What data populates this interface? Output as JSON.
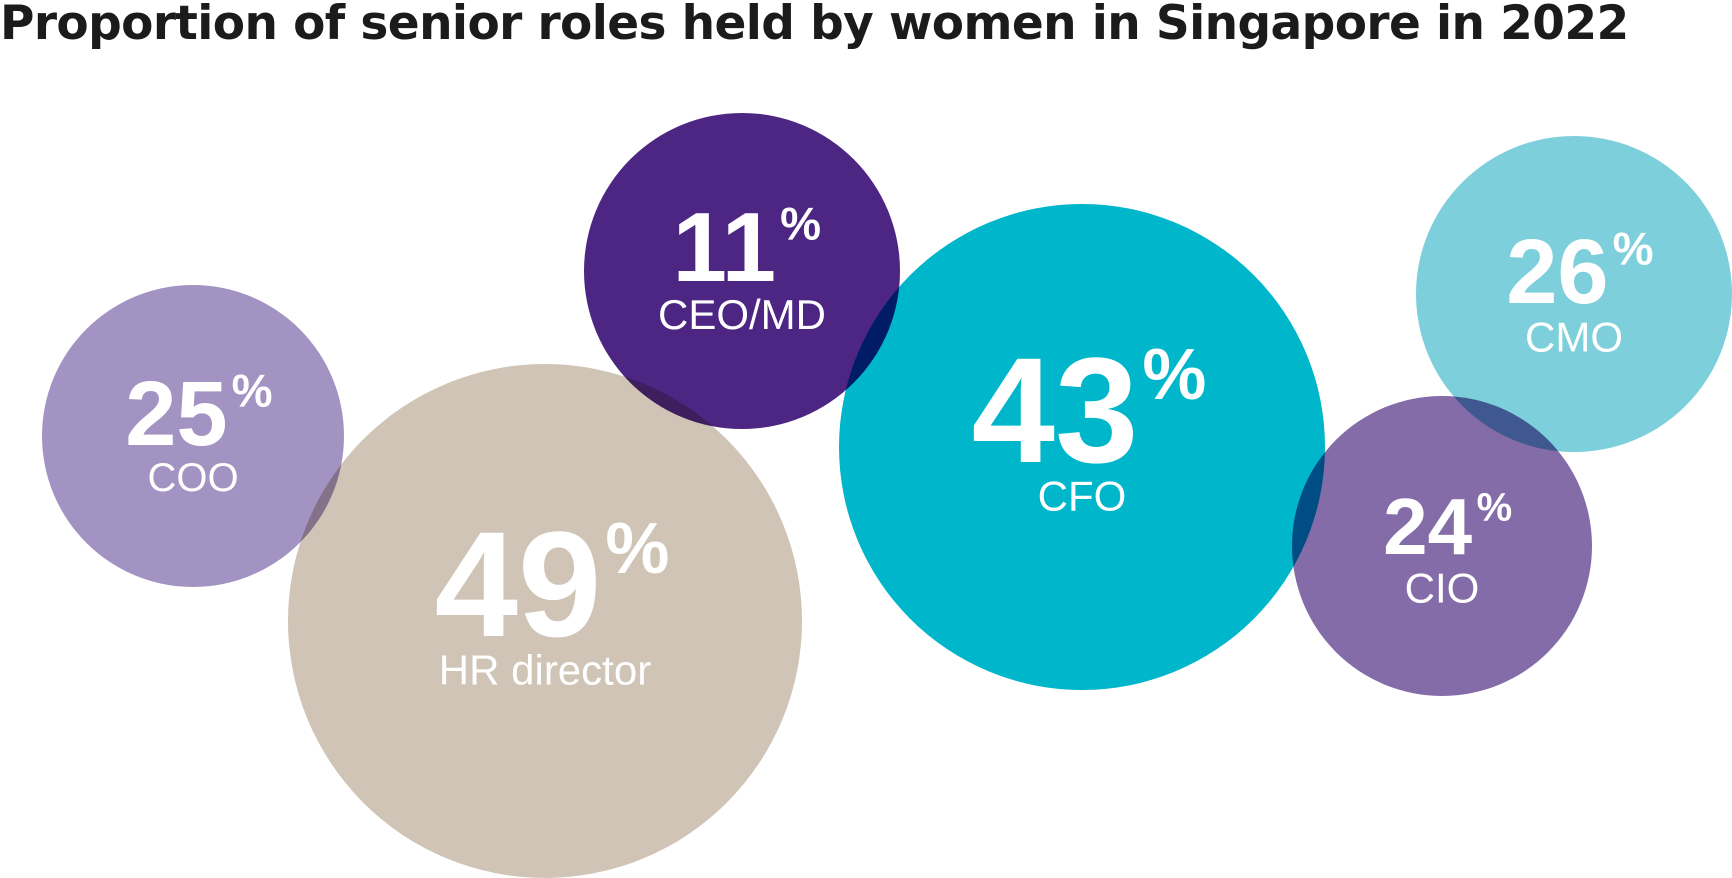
{
  "chart_data": {
    "type": "bubble",
    "title": "Proportion of senior roles held by women in Singapore in 2022",
    "unit": "%",
    "items": [
      {
        "role": "COO",
        "value": 25,
        "color": "#a393c2"
      },
      {
        "role": "HR director",
        "value": 49,
        "color": "#cfc4b6"
      },
      {
        "role": "CEO/MD",
        "value": 11,
        "color": "#4c2682"
      },
      {
        "role": "CFO",
        "value": 43,
        "color": "#00b6ca"
      },
      {
        "role": "CMO",
        "value": 26,
        "color": "#7ccfdb"
      },
      {
        "role": "CIO",
        "value": 24,
        "color": "#846ca8"
      }
    ]
  }
}
